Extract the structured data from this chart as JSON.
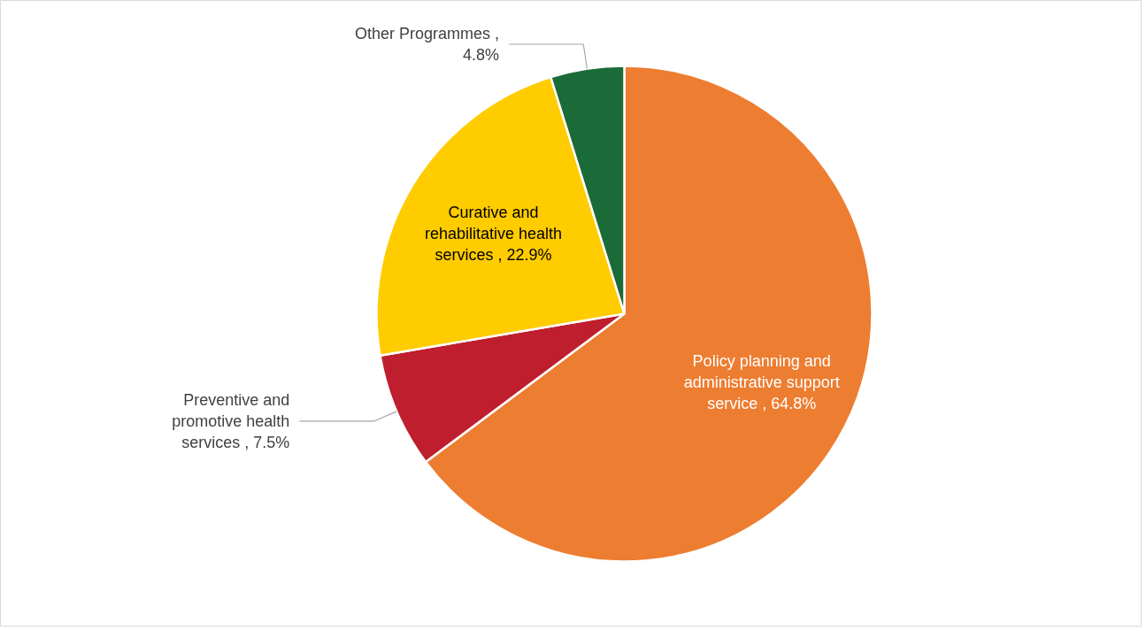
{
  "chart_data": {
    "type": "pie",
    "categories": [
      "Policy planning and administrative support service",
      "Preventive and promotive health services",
      "Curative and rehabilitative health services",
      "Other Programmes"
    ],
    "values": [
      64.8,
      7.5,
      22.9,
      4.8
    ],
    "value_labels": [
      ", 64.8%",
      ", 7.5%",
      ", 22.9%",
      ", 4.8%"
    ],
    "colors": [
      "#ed7d31",
      "#be1e2d",
      "#ffcc00",
      "#1a6b38"
    ]
  }
}
